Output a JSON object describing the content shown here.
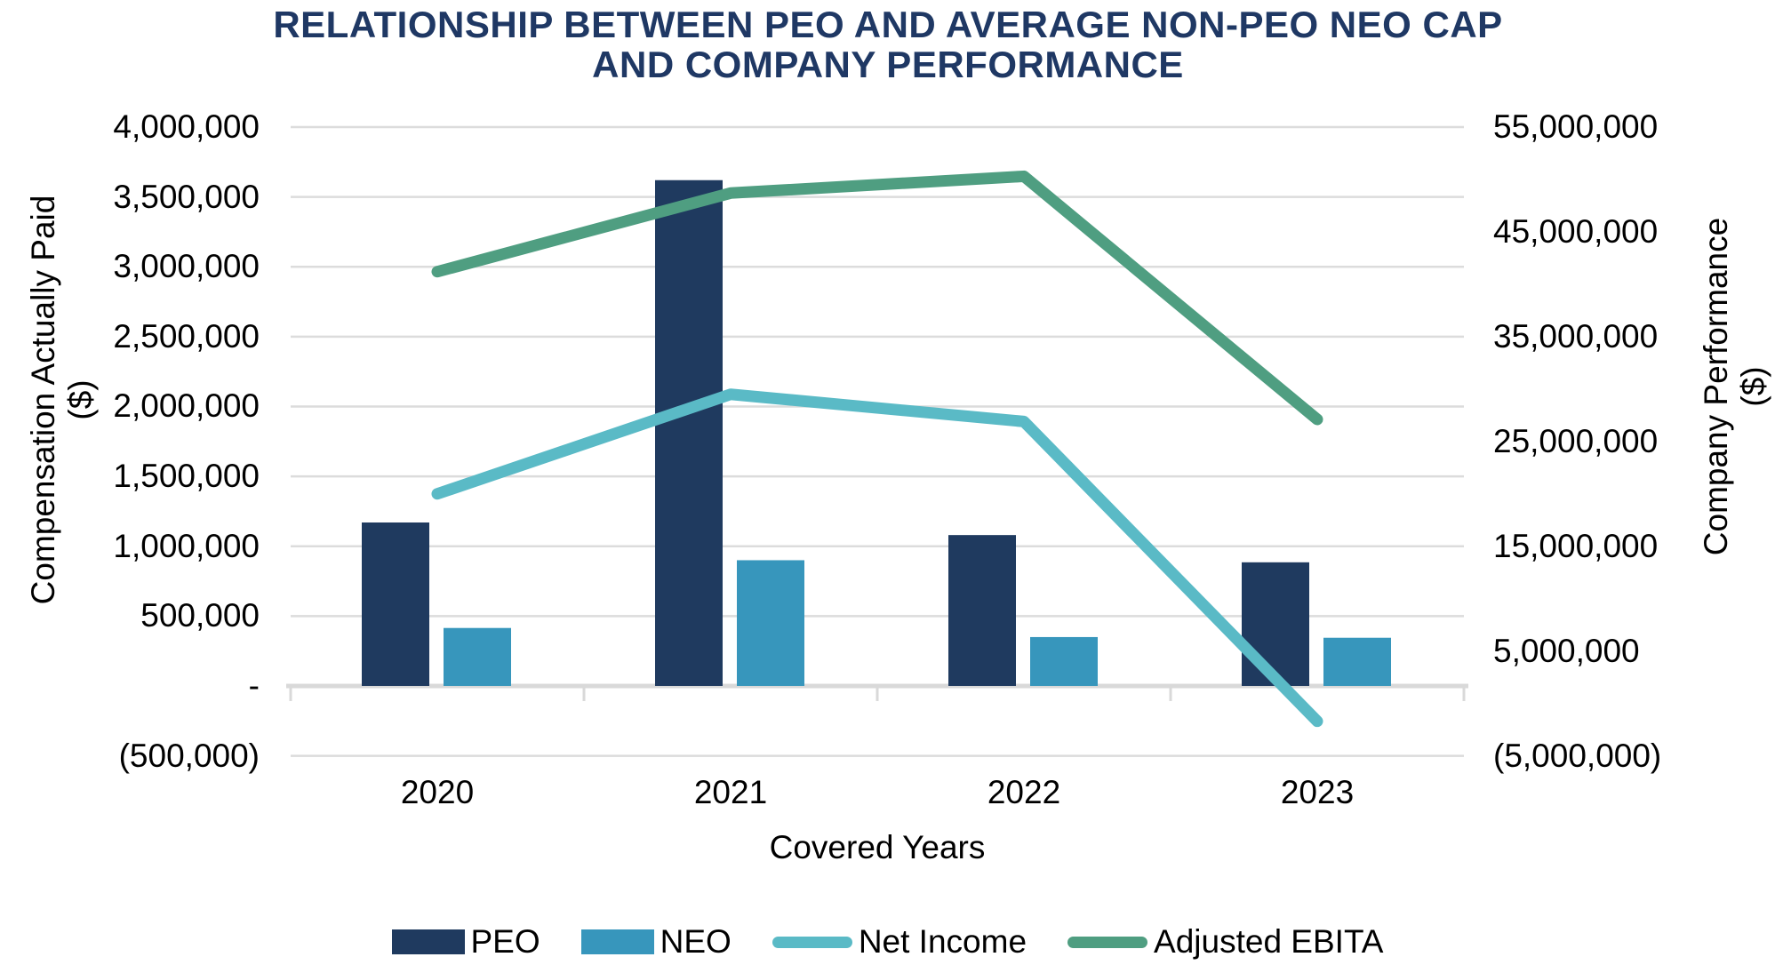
{
  "title": {
    "lines": [
      "RELATIONSHIP BETWEEN PEO AND AVERAGE NON-PEO NEO CAP",
      "AND COMPANY PERFORMANCE"
    ]
  },
  "chart_data": {
    "type": "combo-bar-line",
    "categories": [
      "2020",
      "2021",
      "2022",
      "2023"
    ],
    "x_axis": {
      "title": "Covered Years"
    },
    "y_left": {
      "title_lines": [
        "Compensation Actually Paid",
        "($)"
      ],
      "max": 4000000,
      "min": -500000,
      "step": 500000,
      "tick_labels": [
        "4,000,000",
        "3,500,000",
        "3,000,000",
        "2,500,000",
        "2,000,000",
        "1,500,000",
        "1,000,000",
        "500,000",
        "-",
        "(500,000)"
      ]
    },
    "y_right": {
      "title_lines": [
        "Company Performance",
        "($)"
      ],
      "max": 55000000,
      "min": -5000000,
      "step": 10000000,
      "tick_labels": [
        "55,000,000",
        "45,000,000",
        "35,000,000",
        "25,000,000",
        "15,000,000",
        "5,000,000",
        "(5,000,000)"
      ]
    },
    "bar_series": [
      {
        "name": "PEO",
        "axis": "left",
        "color": "#1F3A5F",
        "values": [
          1170000,
          3620000,
          1080000,
          885000
        ]
      },
      {
        "name": "NEO",
        "axis": "left",
        "color": "#3796BC",
        "values": [
          415000,
          900000,
          350000,
          345000
        ]
      }
    ],
    "line_series": [
      {
        "name": "Net Income",
        "axis": "right",
        "color": "#5ABAC6",
        "values": [
          20000000,
          29500000,
          26900000,
          -1700000
        ]
      },
      {
        "name": "Adjusted EBITA",
        "axis": "right",
        "color": "#4F9E81",
        "values": [
          41200000,
          48700000,
          50300000,
          27100000
        ]
      }
    ],
    "legend": [
      "PEO",
      "NEO",
      "Net Income",
      "Adjusted EBITA"
    ],
    "grid": true
  },
  "colors": {
    "title_text": "#1F3864",
    "axis_text": "#000000",
    "gridline": "#DCDCDC",
    "axis_line": "#D9D9D9"
  }
}
